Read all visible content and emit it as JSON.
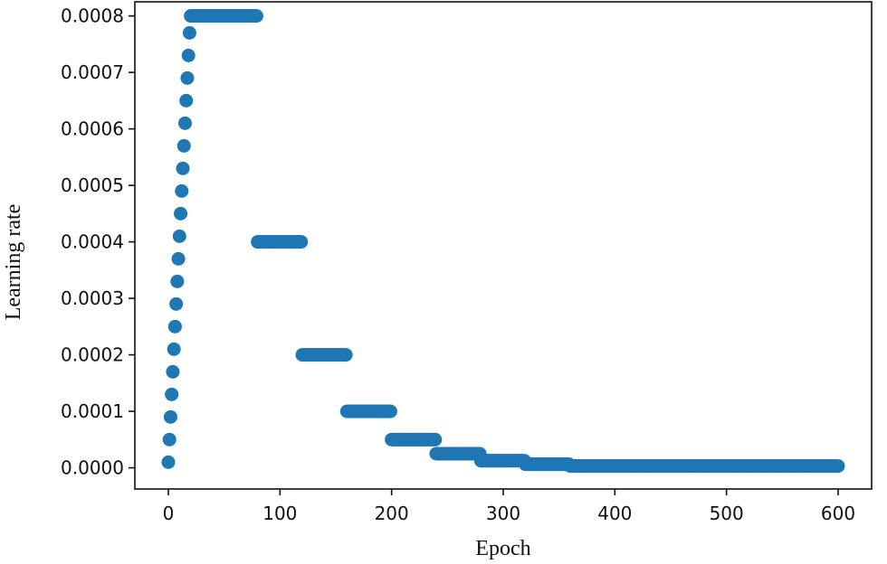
{
  "chart_data": {
    "type": "scatter",
    "title": "",
    "xlabel": "Epoch",
    "ylabel": "Learning rate",
    "xlim": [
      -30,
      630
    ],
    "ylim": [
      -3.75e-05,
      0.000825
    ],
    "xticks": [
      0,
      100,
      200,
      300,
      400,
      500,
      600
    ],
    "xtick_labels": [
      "0",
      "100",
      "200",
      "300",
      "400",
      "500",
      "600"
    ],
    "yticks": [
      0.0,
      0.0001,
      0.0002,
      0.0003,
      0.0004,
      0.0005,
      0.0006,
      0.0007,
      0.0008
    ],
    "ytick_labels": [
      "0.0000",
      "0.0001",
      "0.0002",
      "0.0003",
      "0.0004",
      "0.0005",
      "0.0006",
      "0.0007",
      "0.0008"
    ],
    "grid": false,
    "legend": "none",
    "marker_color": "#1f77b4",
    "warmup": {
      "x": [
        0,
        1,
        2,
        3,
        4,
        5,
        6,
        7,
        8,
        9,
        10,
        11,
        12,
        13,
        14,
        15,
        16,
        17,
        18,
        19
      ],
      "y": [
        1e-05,
        5e-05,
        9e-05,
        0.00013,
        0.00017,
        0.00021,
        0.00025,
        0.00029,
        0.00033,
        0.00037,
        0.00041,
        0.00045,
        0.00049,
        0.00053,
        0.00057,
        0.00061,
        0.00065,
        0.00069,
        0.00073,
        0.00077
      ]
    },
    "steps": [
      {
        "x_start": 20,
        "x_end": 80,
        "y": 0.0008
      },
      {
        "x_start": 80,
        "x_end": 120,
        "y": 0.0004
      },
      {
        "x_start": 120,
        "x_end": 160,
        "y": 0.0002
      },
      {
        "x_start": 160,
        "x_end": 200,
        "y": 0.0001
      },
      {
        "x_start": 200,
        "x_end": 240,
        "y": 5e-05
      },
      {
        "x_start": 240,
        "x_end": 280,
        "y": 2.5e-05
      },
      {
        "x_start": 280,
        "x_end": 320,
        "y": 1.25e-05
      },
      {
        "x_start": 320,
        "x_end": 360,
        "y": 6.25e-06
      },
      {
        "x_start": 360,
        "x_end": 600,
        "y": 3.125e-06
      }
    ]
  }
}
